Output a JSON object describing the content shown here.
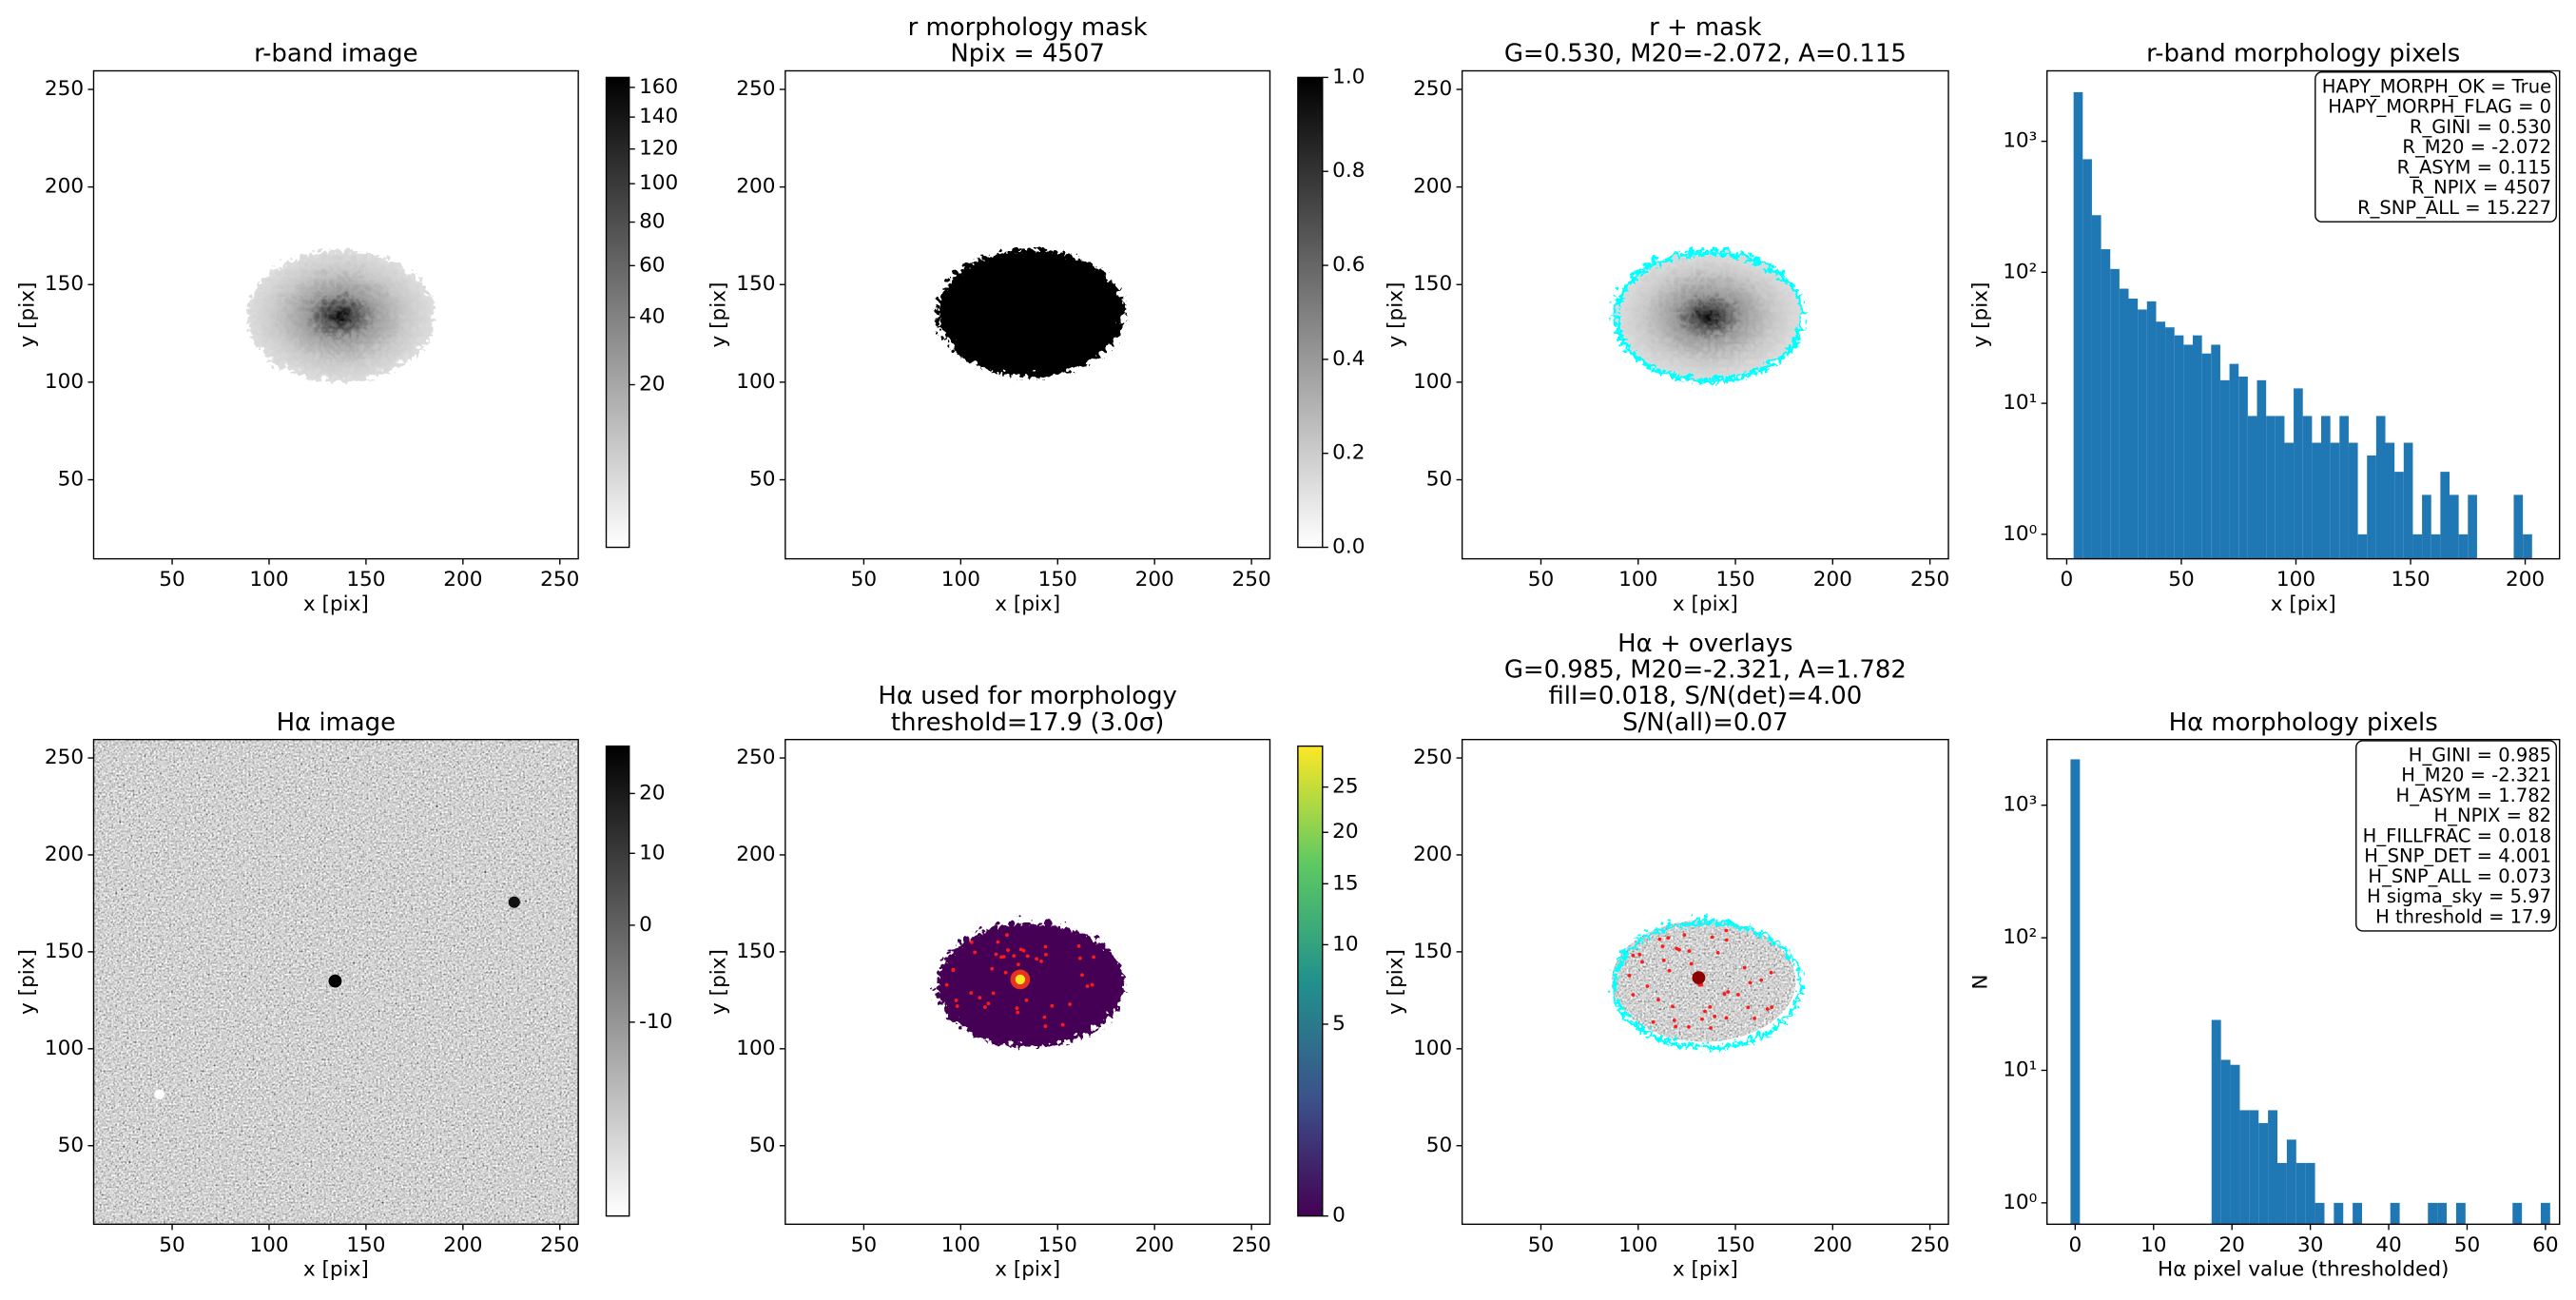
{
  "chart_data": [
    {
      "type": "image",
      "title": [
        "r-band image"
      ],
      "xlabel": "x [pix]",
      "ylabel": "y [pix]",
      "xlim": [
        9.5,
        259.5
      ],
      "ylim": [
        9.5,
        259.5
      ],
      "xticks": [
        50,
        100,
        150,
        200,
        250
      ],
      "yticks": [
        50,
        100,
        150,
        200,
        250
      ],
      "colorbar": {
        "scale": "sqrt",
        "clim": [
          0,
          167
        ],
        "ticks": [
          20,
          40,
          60,
          80,
          100,
          120,
          140,
          160
        ],
        "colors": [
          "#ffffff",
          "#000000"
        ]
      }
    },
    {
      "type": "image",
      "title": [
        "r morphology mask",
        "Npix = 4507"
      ],
      "xlabel": "x [pix]",
      "ylabel": "y [pix]",
      "xlim": [
        9.5,
        259.5
      ],
      "ylim": [
        9.5,
        259.5
      ],
      "xticks": [
        50,
        100,
        150,
        200,
        250
      ],
      "yticks": [
        50,
        100,
        150,
        200,
        250
      ],
      "colorbar": {
        "scale": "linear",
        "clim": [
          0,
          1
        ],
        "ticks": [
          {
            "value": 0,
            "label": "0.0"
          },
          0.2,
          0.4,
          0.6,
          0.8,
          {
            "value": 1,
            "label": "1.0"
          }
        ],
        "colors": [
          "#ffffff",
          "#000000"
        ]
      }
    },
    {
      "type": "image",
      "title": [
        "r + mask",
        "G=0.530, M20=-2.072, A=0.115"
      ],
      "xlabel": "x [pix]",
      "ylabel": "y [pix]",
      "xlim": [
        9.5,
        259.5
      ],
      "ylim": [
        9.5,
        259.5
      ],
      "xticks": [
        50,
        100,
        150,
        200,
        250
      ],
      "yticks": [
        50,
        100,
        150,
        200,
        250
      ]
    },
    {
      "type": "histogram",
      "title": [
        "r-band morphology pixels"
      ],
      "xlabel": "x [pix]",
      "ylabel": "y [pix]",
      "log_y": true,
      "color": "#1f77b4",
      "bins": [
        3,
        7,
        11,
        15,
        19,
        23,
        27,
        31,
        35,
        39,
        43,
        47,
        51,
        55,
        59,
        63,
        67,
        71,
        75,
        79,
        83,
        87,
        91,
        95,
        99,
        103,
        107,
        111,
        115,
        119,
        123,
        127,
        131,
        135,
        139,
        143,
        147,
        151,
        155,
        159,
        163,
        167,
        171,
        175,
        179,
        183,
        187,
        191,
        195,
        199,
        203
      ],
      "counts": [
        2370,
        730,
        273,
        150,
        106,
        75,
        63,
        52,
        60,
        42,
        38,
        33,
        28,
        33,
        24,
        28,
        15,
        20,
        16,
        8,
        15,
        8,
        8,
        5,
        13,
        8,
        5,
        8,
        5,
        8,
        5,
        1,
        4,
        8,
        5,
        3,
        5,
        1,
        2,
        1,
        3,
        2,
        1,
        2,
        0,
        0,
        0,
        0,
        2,
        1
      ],
      "xlim": [
        -8.6,
        215
      ],
      "ylim": [
        0.65,
        3450
      ],
      "xticks": [
        0,
        50,
        100,
        150,
        200
      ],
      "yticks": [
        {
          "value": 1,
          "label": "10⁰"
        },
        {
          "value": 10,
          "label": "10¹"
        },
        {
          "value": 100,
          "label": "10²"
        },
        {
          "value": 1000,
          "label": "10³"
        }
      ],
      "annotation": [
        "HAPY_MORPH_OK = True",
        "HAPY_MORPH_FLAG = 0",
        "R_GINI = 0.530",
        "R_M20 = -2.072",
        "R_ASYM = 0.115",
        "R_NPIX = 4507",
        "R_SNP_ALL = 15.227"
      ]
    },
    {
      "type": "image",
      "title": [
        "Hα image"
      ],
      "xlabel": "x [pix]",
      "ylabel": "y [pix]",
      "xlim": [
        9.5,
        259.5
      ],
      "ylim": [
        9.5,
        259.5
      ],
      "xticks": [
        50,
        100,
        150,
        200,
        250
      ],
      "yticks": [
        50,
        100,
        150,
        200,
        250
      ],
      "colorbar": {
        "scale": "sqrt",
        "clim": [
          -18,
          29
        ],
        "ticks": [
          20,
          10,
          0,
          -10
        ],
        "colors": [
          "#ffffff",
          "#000000"
        ]
      }
    },
    {
      "type": "image",
      "title": [
        "Hα used for morphology",
        "threshold=17.9 (3.0σ)"
      ],
      "xlabel": "x [pix]",
      "ylabel": "y [pix]",
      "xlim": [
        9.5,
        259.5
      ],
      "ylim": [
        9.5,
        259.5
      ],
      "xticks": [
        50,
        100,
        150,
        200,
        250
      ],
      "yticks": [
        50,
        100,
        150,
        200,
        250
      ],
      "colorbar": {
        "scale": "sqrt",
        "clim": [
          0,
          30
        ],
        "ticks": [
          0,
          5,
          10,
          15,
          20,
          25
        ],
        "colors": [
          "#440154",
          "#3b528b",
          "#21918c",
          "#5ec962",
          "#fde725"
        ]
      }
    },
    {
      "type": "image",
      "title": [
        "Hα + overlays",
        "G=0.985, M20=-2.321, A=1.782",
        "fill=0.018, S/N(det)=4.00",
        "S/N(all)=0.07"
      ],
      "xlabel": "x [pix]",
      "ylabel": "y [pix]",
      "xlim": [
        9.5,
        259.5
      ],
      "ylim": [
        9.5,
        259.5
      ],
      "xticks": [
        50,
        100,
        150,
        200,
        250
      ],
      "yticks": [
        50,
        100,
        150,
        200,
        250
      ]
    },
    {
      "type": "histogram",
      "title": [
        "Hα morphology pixels"
      ],
      "xlabel": "Hα pixel value (thresholded)",
      "ylabel": "N",
      "log_y": true,
      "color": "#1f77b4",
      "bins": [
        -0.6,
        0.6,
        1.8,
        3,
        4.2,
        5.4,
        6.6,
        7.8,
        9,
        10.2,
        11.4,
        12.6,
        13.8,
        15,
        16.2,
        17.4,
        18.6,
        19.8,
        21,
        22.2,
        23.4,
        24.6,
        25.8,
        27,
        28.2,
        29.4,
        30.6,
        31.8,
        33,
        34.2,
        35.4,
        36.6,
        37.8,
        39,
        40.2,
        41.4,
        42.6,
        43.8,
        45,
        46.2,
        47.4,
        48.6,
        49.8,
        51,
        52.2,
        53.4,
        54.6,
        55.8,
        57,
        58.2,
        59.4,
        60.6
      ],
      "counts": [
        2220,
        0,
        0,
        0,
        0,
        0,
        0,
        0,
        0,
        0,
        0,
        0,
        0,
        0,
        0,
        24,
        12,
        11,
        5,
        5,
        4,
        5,
        2,
        3,
        2,
        2,
        1,
        0,
        1,
        0,
        1,
        0,
        0,
        0,
        1,
        0,
        0,
        0,
        1,
        1,
        0,
        1,
        0,
        0,
        0,
        0,
        0,
        1,
        0,
        0,
        1
      ],
      "xlim": [
        -3.6,
        61.8
      ],
      "ylim": [
        0.69,
        3130
      ],
      "xticks": [
        0,
        10,
        20,
        30,
        40,
        50,
        60
      ],
      "yticks": [
        {
          "value": 1,
          "label": "10⁰"
        },
        {
          "value": 10,
          "label": "10¹"
        },
        {
          "value": 100,
          "label": "10²"
        },
        {
          "value": 1000,
          "label": "10³"
        }
      ],
      "annotation": [
        "H_GINI = 0.985",
        "H_M20 = -2.321",
        "H_ASYM = 1.782",
        "H_NPIX = 82",
        "H_FILLFRAC = 0.018",
        "H_SNP_DET = 4.001",
        "H_SNP_ALL = 0.073",
        "H sigma_sky = 5.97",
        "H threshold = 17.9"
      ]
    }
  ]
}
